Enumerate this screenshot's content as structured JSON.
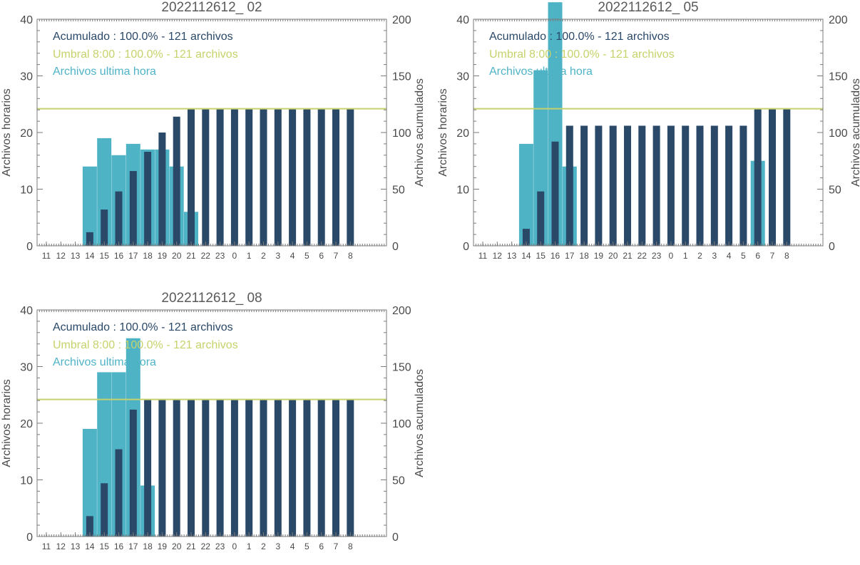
{
  "colors": {
    "hourly": "#4fb3c6",
    "cumulative": "#2a4868",
    "threshold": "#c8d26a",
    "axis": "#7a7a7a"
  },
  "chart_data": [
    {
      "type": "bar",
      "title": "2022112612_ 02",
      "ylabel": "Archivos horarios",
      "y2label": "Archivos acumulados",
      "ylim": [
        0,
        40
      ],
      "y2lim": [
        0,
        200
      ],
      "yticks": [
        "0",
        "10",
        "20",
        "30",
        "40"
      ],
      "y2ticks": [
        "0",
        "50",
        "100",
        "150",
        "200"
      ],
      "categories": [
        "11",
        "12",
        "13",
        "14",
        "15",
        "16",
        "17",
        "18",
        "19",
        "20",
        "21",
        "22",
        "23",
        "0",
        "1",
        "2",
        "3",
        "4",
        "5",
        "6",
        "7",
        "8"
      ],
      "legend": {
        "cumulative": "Acumulado : 100.0% - 121 archivos",
        "threshold": "Umbral 8:00 : 100.0% - 121 archivos",
        "hourly": "Archivos ultima hora"
      },
      "threshold": 121,
      "series": [
        {
          "name": "Archivos ultima hora",
          "axis": "left",
          "values": [
            0,
            0,
            0,
            14,
            19,
            16,
            18,
            17,
            17,
            14,
            6,
            0,
            0,
            0,
            0,
            0,
            0,
            0,
            0,
            0,
            0,
            0
          ]
        },
        {
          "name": "Acumulado",
          "axis": "right",
          "values": [
            0,
            0,
            0,
            12,
            32,
            48,
            66,
            83,
            100,
            114,
            121,
            121,
            121,
            121,
            121,
            121,
            121,
            121,
            121,
            121,
            121,
            121
          ]
        }
      ]
    },
    {
      "type": "bar",
      "title": "2022112612_ 05",
      "ylabel": "Archivos horarios",
      "y2label": "Archivos acumulados",
      "ylim": [
        0,
        40
      ],
      "y2lim": [
        0,
        200
      ],
      "yticks": [
        "0",
        "10",
        "20",
        "30",
        "40"
      ],
      "y2ticks": [
        "0",
        "50",
        "100",
        "150",
        "200"
      ],
      "categories": [
        "11",
        "12",
        "13",
        "14",
        "15",
        "16",
        "17",
        "18",
        "19",
        "20",
        "21",
        "22",
        "23",
        "0",
        "1",
        "2",
        "3",
        "4",
        "5",
        "6",
        "7",
        "8"
      ],
      "legend": {
        "cumulative": "Acumulado : 100.0% - 121 archivos",
        "threshold": "Umbral 8:00 : 100.0% - 121 archivos",
        "hourly": "Archivos ultima hora"
      },
      "threshold": 121,
      "series": [
        {
          "name": "Archivos ultima hora",
          "axis": "left",
          "values": [
            0,
            0,
            0,
            18,
            31,
            43,
            14,
            0,
            0,
            0,
            0,
            0,
            0,
            0,
            0,
            0,
            0,
            0,
            0,
            15,
            0,
            0
          ]
        },
        {
          "name": "Acumulado",
          "axis": "right",
          "values": [
            0,
            0,
            0,
            15,
            48,
            92,
            106,
            106,
            106,
            106,
            106,
            106,
            106,
            106,
            106,
            106,
            106,
            106,
            106,
            121,
            121,
            121
          ]
        }
      ]
    },
    {
      "type": "bar",
      "title": "2022112612_ 08",
      "ylabel": "Archivos horarios",
      "y2label": "Archivos acumulados",
      "ylim": [
        0,
        40
      ],
      "y2lim": [
        0,
        200
      ],
      "yticks": [
        "0",
        "10",
        "20",
        "30",
        "40"
      ],
      "y2ticks": [
        "0",
        "50",
        "100",
        "150",
        "200"
      ],
      "categories": [
        "11",
        "12",
        "13",
        "14",
        "15",
        "16",
        "17",
        "18",
        "19",
        "20",
        "21",
        "22",
        "23",
        "0",
        "1",
        "2",
        "3",
        "4",
        "5",
        "6",
        "7",
        "8"
      ],
      "legend": {
        "cumulative": "Acumulado : 100.0% - 121 archivos",
        "threshold": "Umbral 8:00 : 100.0% - 121 archivos",
        "hourly": "Archivos ultima hora"
      },
      "threshold": 121,
      "series": [
        {
          "name": "Archivos ultima hora",
          "axis": "left",
          "values": [
            0,
            0,
            0,
            19,
            29,
            29,
            35,
            9,
            0,
            0,
            0,
            0,
            0,
            0,
            0,
            0,
            0,
            0,
            0,
            0,
            0,
            0
          ]
        },
        {
          "name": "Acumulado",
          "axis": "right",
          "values": [
            0,
            0,
            0,
            18,
            47,
            77,
            112,
            121,
            121,
            121,
            121,
            121,
            121,
            121,
            121,
            121,
            121,
            121,
            121,
            121,
            121,
            121
          ]
        }
      ]
    }
  ]
}
